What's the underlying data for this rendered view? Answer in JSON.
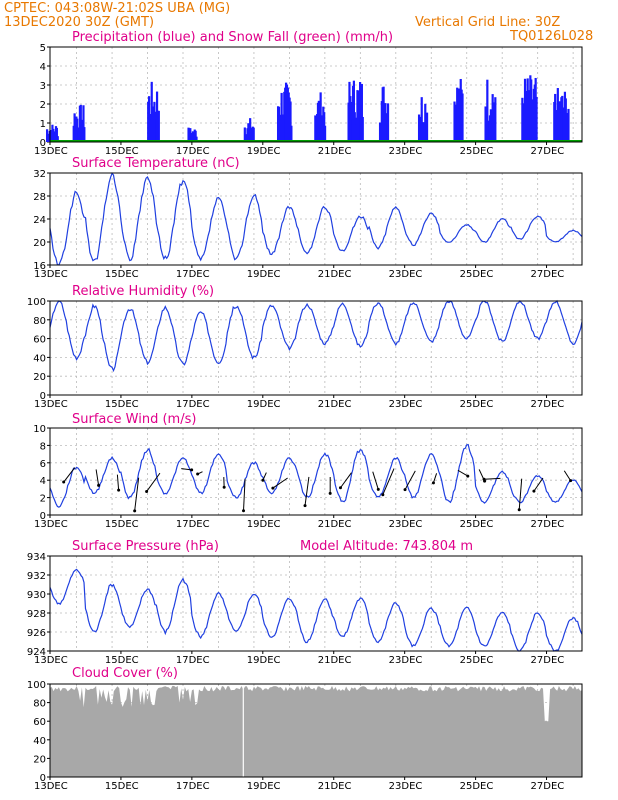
{
  "header": {
    "line1": "CPTEC:  043:08W-21:02S  UBA (MG)",
    "line2": "13DEC2020 30Z (GMT)",
    "grid_note": "Vertical Grid Line: 30Z",
    "code": "TQ0126L028"
  },
  "colors": {
    "header": "#e87800",
    "title": "#e0008a",
    "precip": "#1a1aff",
    "snow": "#00a000",
    "line": "#2040e0",
    "cloud": "#a8a8a8"
  },
  "x_labels": [
    "13DEC",
    "15DEC",
    "17DEC",
    "19DEC",
    "21DEC",
    "23DEC",
    "25DEC",
    "27DEC"
  ],
  "chart_data": [
    {
      "type": "bar",
      "title": "Precipitation (blue) and Snow Fall (green) (mm/h)",
      "ylim": [
        0,
        5
      ],
      "yticks": [
        0,
        1,
        2,
        3,
        4,
        5
      ],
      "x_range_days": [
        0,
        15
      ],
      "grid": true,
      "series": [
        {
          "name": "Precipitation",
          "peaks": [
            [
              0.05,
              1.0
            ],
            [
              0.8,
              2.0
            ],
            [
              2.9,
              3.2
            ],
            [
              4.0,
              0.8
            ],
            [
              5.6,
              1.3
            ],
            [
              6.6,
              3.2
            ],
            [
              7.6,
              2.7
            ],
            [
              8.6,
              3.5
            ],
            [
              9.4,
              3.3
            ],
            [
              10.5,
              2.8
            ],
            [
              11.5,
              3.5
            ],
            [
              12.4,
              3.6
            ],
            [
              13.5,
              3.6
            ],
            [
              14.4,
              2.9
            ]
          ]
        },
        {
          "name": "Snow Fall",
          "values": [
            0
          ]
        }
      ]
    },
    {
      "type": "line",
      "title": "Surface Temperature (nC)",
      "ylim": [
        16,
        32
      ],
      "yticks": [
        16,
        20,
        24,
        28,
        32
      ],
      "grid": true,
      "daily_max": [
        28.5,
        31.5,
        31,
        30.5,
        27.5,
        28,
        26,
        26,
        24.5,
        26,
        25,
        23,
        24,
        24.5,
        22
      ],
      "daily_min": [
        16,
        16.5,
        17,
        17,
        17,
        17,
        18,
        18,
        18.5,
        19,
        19.5,
        20,
        20,
        20.5,
        20
      ]
    },
    {
      "type": "line",
      "title": "Relative Humidity (%)",
      "ylim": [
        0,
        100
      ],
      "yticks": [
        0,
        20,
        40,
        60,
        80,
        100
      ],
      "grid": true,
      "daily_max": [
        100,
        95,
        92,
        93,
        88,
        95,
        95,
        96,
        97,
        98,
        98,
        100,
        100,
        100,
        100
      ],
      "daily_min": [
        40,
        27,
        35,
        33,
        35,
        40,
        50,
        55,
        52,
        55,
        57,
        60,
        57,
        60,
        55
      ]
    },
    {
      "type": "line",
      "title": "Surface Wind (m/s)",
      "ylim": [
        0,
        10
      ],
      "yticks": [
        0,
        2,
        4,
        6,
        8,
        10
      ],
      "grid": true,
      "daily_max": [
        5.5,
        6.5,
        7.5,
        6.5,
        7,
        6,
        6.5,
        7,
        7.5,
        6.5,
        7,
        8,
        5,
        4.5,
        4
      ],
      "daily_min": [
        1,
        2.5,
        2,
        2.5,
        2.5,
        2,
        2.5,
        2,
        1.5,
        2,
        2,
        1.5,
        1.5,
        1.5,
        1.5
      ]
    },
    {
      "type": "line",
      "title": "Surface Pressure (hPa)",
      "subtitle": "Model Altitude: 743.804  m",
      "ylim": [
        924,
        934
      ],
      "yticks": [
        924,
        926,
        928,
        930,
        932,
        934
      ],
      "grid": true,
      "daily_max": [
        932.5,
        931,
        930.5,
        931.5,
        930,
        930,
        929.5,
        929.5,
        929.5,
        929,
        928.5,
        928.5,
        928,
        928,
        927.5
      ],
      "daily_min": [
        929,
        926,
        926.5,
        926,
        925.5,
        926,
        925.5,
        925,
        925.5,
        925,
        924.5,
        924.5,
        924.5,
        924,
        924
      ]
    },
    {
      "type": "area",
      "title": "Cloud Cover (%)",
      "ylim": [
        0,
        100
      ],
      "yticks": [
        0,
        20,
        40,
        60,
        80,
        100
      ],
      "grid": true,
      "typical": 98
    }
  ]
}
